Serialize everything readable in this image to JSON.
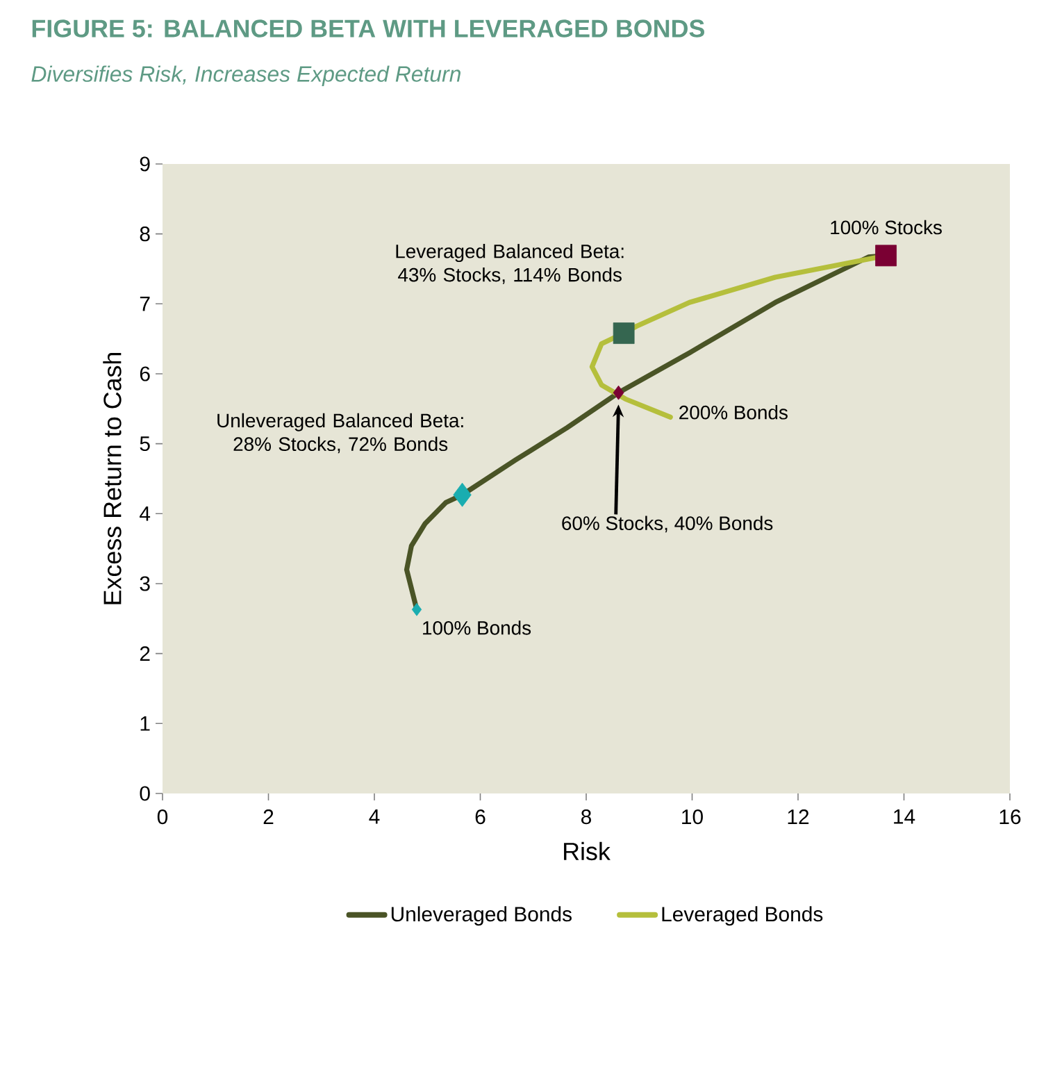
{
  "chart_data": {
    "type": "line",
    "title": "FIGURE 5: BALANCED BETA WITH LEVERAGED BONDS",
    "subtitle": "Diversifies Risk, Increases Expected Return",
    "xlabel": "Risk",
    "ylabel": "Excess Return to Cash",
    "xlim": [
      0,
      16
    ],
    "ylim": [
      0,
      9
    ],
    "xticks": [
      0,
      2,
      4,
      6,
      8,
      10,
      12,
      14,
      16
    ],
    "yticks": [
      0,
      1,
      2,
      3,
      4,
      5,
      6,
      7,
      8,
      9
    ],
    "grid": false,
    "legend": "bottom",
    "marker": "none",
    "line_style": "solid",
    "series": [
      {
        "name": "Unleveraged Bonds",
        "color": "#4a5426",
        "x": [
          4.8,
          4.61,
          4.7,
          4.96,
          5.35,
          5.66,
          6.67,
          7.64,
          8.61,
          9.95,
          11.57,
          13.33,
          13.66
        ],
        "values": [
          2.63,
          3.2,
          3.54,
          3.86,
          4.16,
          4.27,
          4.77,
          5.23,
          5.73,
          6.3,
          7.02,
          7.67,
          7.69
        ]
      },
      {
        "name": "Leveraged Bonds",
        "color": "#b5bf3c",
        "x": [
          13.66,
          11.57,
          9.95,
          8.95,
          8.71,
          8.29,
          8.11,
          8.29,
          8.74,
          9.59
        ],
        "values": [
          7.69,
          7.38,
          7.02,
          6.68,
          6.58,
          6.43,
          6.1,
          5.84,
          5.64,
          5.38
        ]
      },
      {
        "type": "scatter",
        "marker": "diamond",
        "color": "#1aadb0",
        "x": [
          4.8
        ],
        "values": [
          2.63
        ]
      },
      {
        "type": "scatter",
        "marker": "diamond",
        "color": "#1aadb0",
        "x": [
          5.66
        ],
        "values": [
          4.27
        ]
      },
      {
        "type": "scatter",
        "marker": "diamond",
        "color": "#7a0033",
        "x": [
          8.61
        ],
        "values": [
          5.73
        ]
      },
      {
        "type": "scatter",
        "marker": "square",
        "color": "#356650",
        "x": [
          8.71
        ],
        "values": [
          6.58
        ]
      },
      {
        "type": "scatter",
        "marker": "square",
        "color": "#7a0033",
        "x": [
          13.66
        ],
        "values": [
          7.69
        ]
      }
    ],
    "annotations": [
      {
        "text": "100% Stocks",
        "x": 13.66,
        "y": 7.69
      },
      {
        "text": "Leveraged Balanced Beta: 43% Stocks, 114% Bonds",
        "x": 8.71,
        "y": 6.58
      },
      {
        "text": "Unleveraged Balanced Beta: 28% Stocks, 72% Bonds",
        "x": 5.66,
        "y": 4.27
      },
      {
        "text": "200% Bonds",
        "x": 9.59,
        "y": 5.38
      },
      "60% Stocks, 40% Bonds",
      {
        "text": "100% Bonds",
        "x": 4.8,
        "y": 2.63
      }
    ]
  }
}
